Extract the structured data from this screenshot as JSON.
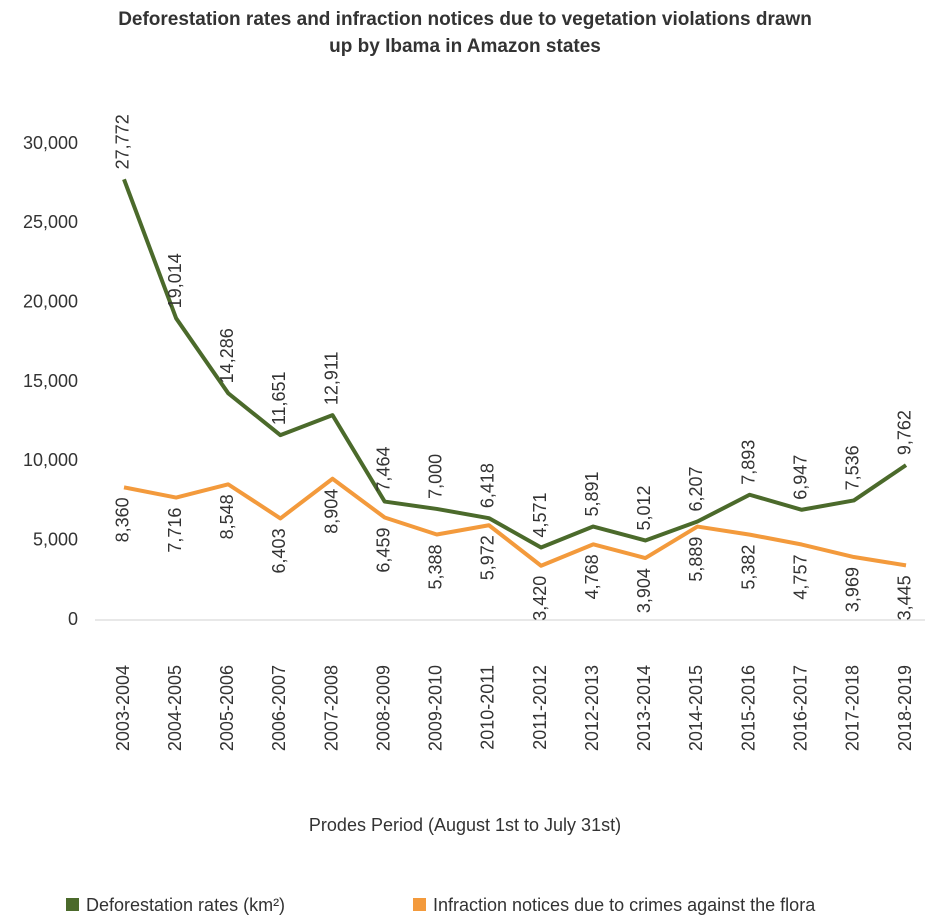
{
  "chart_data": {
    "type": "line",
    "title": "Deforestation rates and infraction notices due to vegetation violations drawn up by Ibama in Amazon states",
    "x_label": "Prodes Period (August 1st to July 31st)",
    "categories": [
      "2003-2004",
      "2004-2005",
      "2005-2006",
      "2006-2007",
      "2007-2008",
      "2008-2009",
      "2009-2010",
      "2010-2011",
      "2011-2012",
      "2012-2013",
      "2013-2014",
      "2014-2015",
      "2015-2016",
      "2016-2017",
      "2017-2018",
      "2018-2019"
    ],
    "series": [
      {
        "name": "Deforestation rates (km²)",
        "color": "#4b6a2b",
        "values": [
          27772,
          19014,
          14286,
          11651,
          12911,
          7464,
          7000,
          6418,
          4571,
          5891,
          5012,
          6207,
          7893,
          6947,
          7536,
          9762
        ],
        "value_labels": [
          "27,772",
          "19,014",
          "14,286",
          "11,651",
          "12,911",
          "7,464",
          "7,000",
          "6,418",
          "4,571",
          "5,891",
          "5,012",
          "6,207",
          "7,893",
          "6,947",
          "7,536",
          "9,762"
        ]
      },
      {
        "name": "Infraction notices due to crimes against the flora",
        "color": "#f39a3c",
        "values": [
          8360,
          7716,
          8548,
          6403,
          8904,
          6459,
          5388,
          5972,
          3420,
          4768,
          3904,
          5889,
          5382,
          4757,
          3969,
          3445
        ],
        "value_labels": [
          "8,360",
          "7,716",
          "8,548",
          "6,403",
          "8,904",
          "6,459",
          "5,388",
          "5,972",
          "3,420",
          "4,768",
          "3,904",
          "5,889",
          "5,382",
          "4,757",
          "3,969",
          "3,445"
        ]
      }
    ],
    "ylim": [
      0,
      30000
    ],
    "yticks": [
      0,
      {
        "value": 5000,
        "label": "5,000"
      },
      {
        "value": 10000,
        "label": "10,000"
      },
      {
        "value": 15000,
        "label": "15,000"
      },
      {
        "value": 20000,
        "label": "20,000"
      },
      {
        "value": 25000,
        "label": "25,000"
      },
      {
        "value": 30000,
        "label": "30,000"
      }
    ],
    "legend": "bottom"
  }
}
